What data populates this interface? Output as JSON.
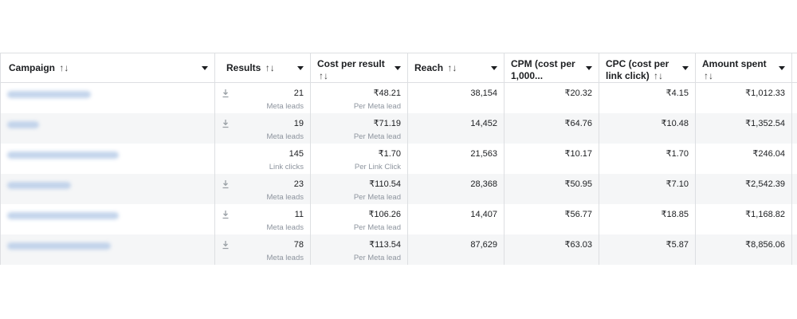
{
  "headers": {
    "campaign": "Campaign",
    "results": "Results",
    "cost_per_result": "Cost per result",
    "reach": "Reach",
    "cpm": "CPM (cost per 1,000...",
    "cpc": "CPC (cost per link click)",
    "amount_spent": "Amount spent",
    "sort_glyph": "↑↓"
  },
  "icons": {
    "sort": "sort-arrows-icon",
    "dropdown": "caret-down-icon",
    "download": "download-icon"
  },
  "colors": {
    "border": "#dddfe2",
    "alt_row": "#f5f6f7",
    "subtext": "#8d949e",
    "blurred_link": "#b9cde8"
  },
  "rows": [
    {
      "results": "21",
      "result_type": "Meta leads",
      "cost_per_result": "₹48.21",
      "cost_type": "Per Meta lead",
      "reach": "38,154",
      "cpm": "₹20.32",
      "cpc": "₹4.15",
      "amount_spent": "₹1,012.33"
    },
    {
      "results": "19",
      "result_type": "Meta leads",
      "cost_per_result": "₹71.19",
      "cost_type": "Per Meta lead",
      "reach": "14,452",
      "cpm": "₹64.76",
      "cpc": "₹10.48",
      "amount_spent": "₹1,352.54"
    },
    {
      "results": "145",
      "result_type": "Link clicks",
      "cost_per_result": "₹1.70",
      "cost_type": "Per Link Click",
      "reach": "21,563",
      "cpm": "₹10.17",
      "cpc": "₹1.70",
      "amount_spent": "₹246.04"
    },
    {
      "results": "23",
      "result_type": "Meta leads",
      "cost_per_result": "₹110.54",
      "cost_type": "Per Meta lead",
      "reach": "28,368",
      "cpm": "₹50.95",
      "cpc": "₹7.10",
      "amount_spent": "₹2,542.39"
    },
    {
      "results": "11",
      "result_type": "Meta leads",
      "cost_per_result": "₹106.26",
      "cost_type": "Per Meta lead",
      "reach": "14,407",
      "cpm": "₹56.77",
      "cpc": "₹18.85",
      "amount_spent": "₹1,168.82"
    },
    {
      "results": "78",
      "result_type": "Meta leads",
      "cost_per_result": "₹113.54",
      "cost_type": "Per Meta lead",
      "reach": "87,629",
      "cpm": "₹63.03",
      "cpc": "₹5.87",
      "amount_spent": "₹8,856.06"
    }
  ]
}
